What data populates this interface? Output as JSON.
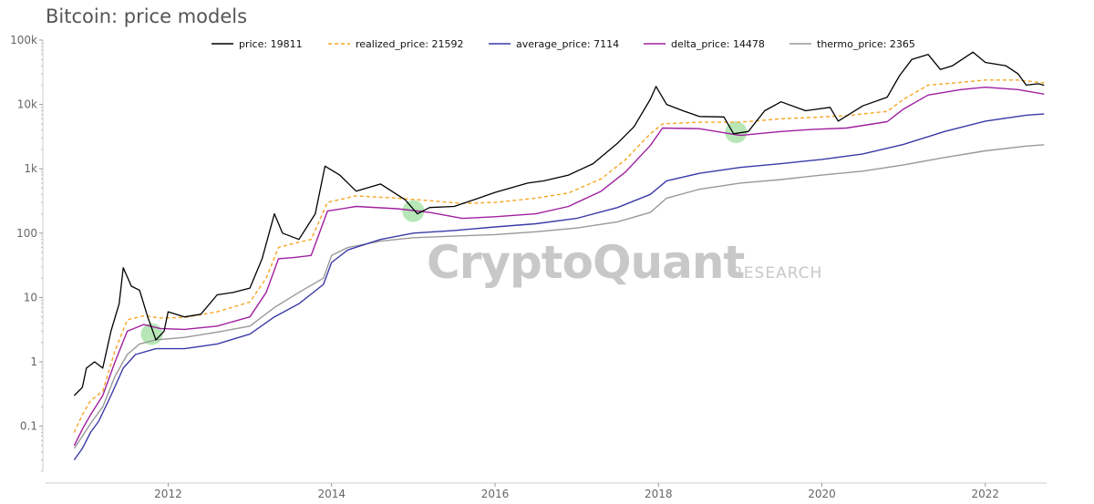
{
  "chart_data": {
    "type": "line",
    "title": "Bitcoin: price models",
    "y_scale": "log",
    "ylim": [
      0.02,
      100000
    ],
    "xlim": [
      2010.5,
      2022.75
    ],
    "y_ticks": [
      {
        "value": 0.1,
        "label": "0.1"
      },
      {
        "value": 1,
        "label": "1"
      },
      {
        "value": 10,
        "label": "10"
      },
      {
        "value": 100,
        "label": "100"
      },
      {
        "value": 1000,
        "label": "1k"
      },
      {
        "value": 10000,
        "label": "10k"
      },
      {
        "value": 100000,
        "label": "100k"
      }
    ],
    "x_ticks": [
      {
        "value": 2012,
        "label": "2012"
      },
      {
        "value": 2014,
        "label": "2014"
      },
      {
        "value": 2016,
        "label": "2016"
      },
      {
        "value": 2018,
        "label": "2018"
      },
      {
        "value": 2020,
        "label": "2020"
      },
      {
        "value": 2022,
        "label": "2022"
      }
    ],
    "grid": false,
    "legend_position": "top",
    "series": [
      {
        "name": "price: 19811",
        "color": "#000000",
        "dash": "solid",
        "points": [
          [
            2010.85,
            0.3
          ],
          [
            2010.95,
            0.4
          ],
          [
            2011.0,
            0.8
          ],
          [
            2011.1,
            1.0
          ],
          [
            2011.2,
            0.8
          ],
          [
            2011.3,
            3.0
          ],
          [
            2011.4,
            8.0
          ],
          [
            2011.45,
            29.0
          ],
          [
            2011.55,
            15.0
          ],
          [
            2011.65,
            13.0
          ],
          [
            2011.75,
            5.0
          ],
          [
            2011.85,
            2.2
          ],
          [
            2011.95,
            3.0
          ],
          [
            2012.0,
            6.0
          ],
          [
            2012.2,
            5.0
          ],
          [
            2012.4,
            5.5
          ],
          [
            2012.6,
            11.0
          ],
          [
            2012.8,
            12.0
          ],
          [
            2013.0,
            14.0
          ],
          [
            2013.15,
            40.0
          ],
          [
            2013.3,
            200.0
          ],
          [
            2013.4,
            100.0
          ],
          [
            2013.6,
            80.0
          ],
          [
            2013.8,
            200.0
          ],
          [
            2013.92,
            1100.0
          ],
          [
            2014.1,
            800.0
          ],
          [
            2014.3,
            450.0
          ],
          [
            2014.6,
            580.0
          ],
          [
            2014.9,
            330.0
          ],
          [
            2015.05,
            200.0
          ],
          [
            2015.2,
            250.0
          ],
          [
            2015.5,
            260.0
          ],
          [
            2015.8,
            350.0
          ],
          [
            2016.0,
            430.0
          ],
          [
            2016.4,
            600.0
          ],
          [
            2016.6,
            650.0
          ],
          [
            2016.9,
            800.0
          ],
          [
            2017.2,
            1200.0
          ],
          [
            2017.5,
            2500.0
          ],
          [
            2017.7,
            4500.0
          ],
          [
            2017.9,
            12000.0
          ],
          [
            2017.97,
            19000.0
          ],
          [
            2018.1,
            10000.0
          ],
          [
            2018.3,
            8000.0
          ],
          [
            2018.5,
            6500.0
          ],
          [
            2018.8,
            6400.0
          ],
          [
            2018.92,
            3500.0
          ],
          [
            2019.1,
            3800.0
          ],
          [
            2019.3,
            8000.0
          ],
          [
            2019.5,
            11000.0
          ],
          [
            2019.8,
            8000.0
          ],
          [
            2020.1,
            9000.0
          ],
          [
            2020.2,
            5500.0
          ],
          [
            2020.5,
            9500.0
          ],
          [
            2020.8,
            13000.0
          ],
          [
            2020.95,
            28000.0
          ],
          [
            2021.1,
            50000.0
          ],
          [
            2021.3,
            60000.0
          ],
          [
            2021.45,
            35000.0
          ],
          [
            2021.6,
            40000.0
          ],
          [
            2021.85,
            65000.0
          ],
          [
            2022.0,
            45000.0
          ],
          [
            2022.25,
            40000.0
          ],
          [
            2022.4,
            30000.0
          ],
          [
            2022.5,
            20000.0
          ],
          [
            2022.65,
            21000.0
          ],
          [
            2022.72,
            19811.0
          ]
        ]
      },
      {
        "name": "realized_price: 21592",
        "color": "#f5a623",
        "dash": "dashed",
        "points": [
          [
            2010.85,
            0.08
          ],
          [
            2010.95,
            0.15
          ],
          [
            2011.05,
            0.25
          ],
          [
            2011.2,
            0.35
          ],
          [
            2011.35,
            1.5
          ],
          [
            2011.5,
            4.5
          ],
          [
            2011.7,
            5.2
          ],
          [
            2011.9,
            4.8
          ],
          [
            2012.2,
            4.9
          ],
          [
            2012.6,
            6.0
          ],
          [
            2013.0,
            8.5
          ],
          [
            2013.2,
            20.0
          ],
          [
            2013.35,
            60.0
          ],
          [
            2013.55,
            70.0
          ],
          [
            2013.75,
            80.0
          ],
          [
            2013.95,
            300.0
          ],
          [
            2014.3,
            380.0
          ],
          [
            2014.8,
            350.0
          ],
          [
            2015.2,
            320.0
          ],
          [
            2015.6,
            290.0
          ],
          [
            2016.0,
            300.0
          ],
          [
            2016.5,
            350.0
          ],
          [
            2016.9,
            420.0
          ],
          [
            2017.3,
            700.0
          ],
          [
            2017.6,
            1400.0
          ],
          [
            2017.9,
            3500.0
          ],
          [
            2018.05,
            5000.0
          ],
          [
            2018.5,
            5300.0
          ],
          [
            2019.0,
            5300.0
          ],
          [
            2019.5,
            6000.0
          ],
          [
            2019.9,
            6300.0
          ],
          [
            2020.3,
            6700.0
          ],
          [
            2020.8,
            7800.0
          ],
          [
            2021.0,
            12000.0
          ],
          [
            2021.3,
            20000.0
          ],
          [
            2021.7,
            22000.0
          ],
          [
            2022.0,
            24000.0
          ],
          [
            2022.4,
            24000.0
          ],
          [
            2022.72,
            21592.0
          ]
        ]
      },
      {
        "name": "average_price: 7114",
        "color": "#3a3aa8",
        "dash": "solid",
        "points": [
          [
            2010.85,
            0.03
          ],
          [
            2010.95,
            0.045
          ],
          [
            2011.05,
            0.08
          ],
          [
            2011.15,
            0.12
          ],
          [
            2011.3,
            0.3
          ],
          [
            2011.45,
            0.8
          ],
          [
            2011.6,
            1.3
          ],
          [
            2011.85,
            1.6
          ],
          [
            2012.2,
            1.6
          ],
          [
            2012.6,
            1.9
          ],
          [
            2013.0,
            2.7
          ],
          [
            2013.3,
            5.0
          ],
          [
            2013.6,
            8.0
          ],
          [
            2013.9,
            16.0
          ],
          [
            2014.0,
            35.0
          ],
          [
            2014.2,
            55.0
          ],
          [
            2014.6,
            80.0
          ],
          [
            2015.0,
            100.0
          ],
          [
            2015.5,
            110.0
          ],
          [
            2016.0,
            125.0
          ],
          [
            2016.5,
            140.0
          ],
          [
            2017.0,
            170.0
          ],
          [
            2017.5,
            250.0
          ],
          [
            2017.9,
            400.0
          ],
          [
            2018.1,
            650.0
          ],
          [
            2018.5,
            850.0
          ],
          [
            2019.0,
            1050.0
          ],
          [
            2019.5,
            1200.0
          ],
          [
            2020.0,
            1400.0
          ],
          [
            2020.5,
            1700.0
          ],
          [
            2021.0,
            2400.0
          ],
          [
            2021.5,
            3800.0
          ],
          [
            2022.0,
            5500.0
          ],
          [
            2022.5,
            6800.0
          ],
          [
            2022.72,
            7114.0
          ]
        ]
      },
      {
        "name": "delta_price: 14478",
        "color": "#a020a0",
        "dash": "solid",
        "points": [
          [
            2010.85,
            0.05
          ],
          [
            2010.95,
            0.09
          ],
          [
            2011.05,
            0.15
          ],
          [
            2011.2,
            0.3
          ],
          [
            2011.35,
            1.0
          ],
          [
            2011.5,
            3.0
          ],
          [
            2011.7,
            3.8
          ],
          [
            2011.9,
            3.3
          ],
          [
            2012.2,
            3.2
          ],
          [
            2012.6,
            3.6
          ],
          [
            2013.0,
            5.0
          ],
          [
            2013.2,
            12.0
          ],
          [
            2013.35,
            40.0
          ],
          [
            2013.55,
            42.0
          ],
          [
            2013.75,
            45.0
          ],
          [
            2013.95,
            220.0
          ],
          [
            2014.3,
            260.0
          ],
          [
            2014.8,
            240.0
          ],
          [
            2015.2,
            210.0
          ],
          [
            2015.6,
            170.0
          ],
          [
            2016.0,
            180.0
          ],
          [
            2016.5,
            200.0
          ],
          [
            2016.9,
            260.0
          ],
          [
            2017.3,
            450.0
          ],
          [
            2017.6,
            900.0
          ],
          [
            2017.9,
            2300.0
          ],
          [
            2018.05,
            4300.0
          ],
          [
            2018.5,
            4200.0
          ],
          [
            2019.0,
            3300.0
          ],
          [
            2019.5,
            3800.0
          ],
          [
            2019.9,
            4100.0
          ],
          [
            2020.3,
            4300.0
          ],
          [
            2020.8,
            5400.0
          ],
          [
            2021.0,
            8500.0
          ],
          [
            2021.3,
            14000.0
          ],
          [
            2021.7,
            17000.0
          ],
          [
            2022.0,
            18500.0
          ],
          [
            2022.4,
            17000.0
          ],
          [
            2022.72,
            14478.0
          ]
        ]
      },
      {
        "name": "thermo_price: 2365",
        "color": "#999999",
        "dash": "solid",
        "points": [
          [
            2010.85,
            0.045
          ],
          [
            2010.95,
            0.07
          ],
          [
            2011.05,
            0.11
          ],
          [
            2011.2,
            0.2
          ],
          [
            2011.35,
            0.6
          ],
          [
            2011.5,
            1.3
          ],
          [
            2011.65,
            1.9
          ],
          [
            2011.85,
            2.2
          ],
          [
            2012.2,
            2.4
          ],
          [
            2012.6,
            2.9
          ],
          [
            2013.0,
            3.6
          ],
          [
            2013.3,
            7.0
          ],
          [
            2013.6,
            12.0
          ],
          [
            2013.9,
            20.0
          ],
          [
            2014.0,
            45.0
          ],
          [
            2014.2,
            60.0
          ],
          [
            2014.6,
            75.0
          ],
          [
            2015.0,
            85.0
          ],
          [
            2015.5,
            90.0
          ],
          [
            2016.0,
            95.0
          ],
          [
            2016.5,
            105.0
          ],
          [
            2017.0,
            120.0
          ],
          [
            2017.5,
            150.0
          ],
          [
            2017.9,
            210.0
          ],
          [
            2018.1,
            350.0
          ],
          [
            2018.5,
            480.0
          ],
          [
            2019.0,
            600.0
          ],
          [
            2019.5,
            680.0
          ],
          [
            2020.0,
            800.0
          ],
          [
            2020.5,
            920.0
          ],
          [
            2021.0,
            1150.0
          ],
          [
            2021.5,
            1500.0
          ],
          [
            2022.0,
            1900.0
          ],
          [
            2022.5,
            2250.0
          ],
          [
            2022.72,
            2365.0
          ]
        ]
      }
    ],
    "highlights": [
      {
        "x": 2011.8,
        "y": 2.7,
        "color": "#7cd37c"
      },
      {
        "x": 2015.0,
        "y": 220,
        "color": "#7cd37c"
      },
      {
        "x": 2018.95,
        "y": 3700,
        "color": "#7cd37c"
      }
    ]
  },
  "watermark": {
    "main": "CryptoQuant",
    "sub": "RESEARCH"
  }
}
